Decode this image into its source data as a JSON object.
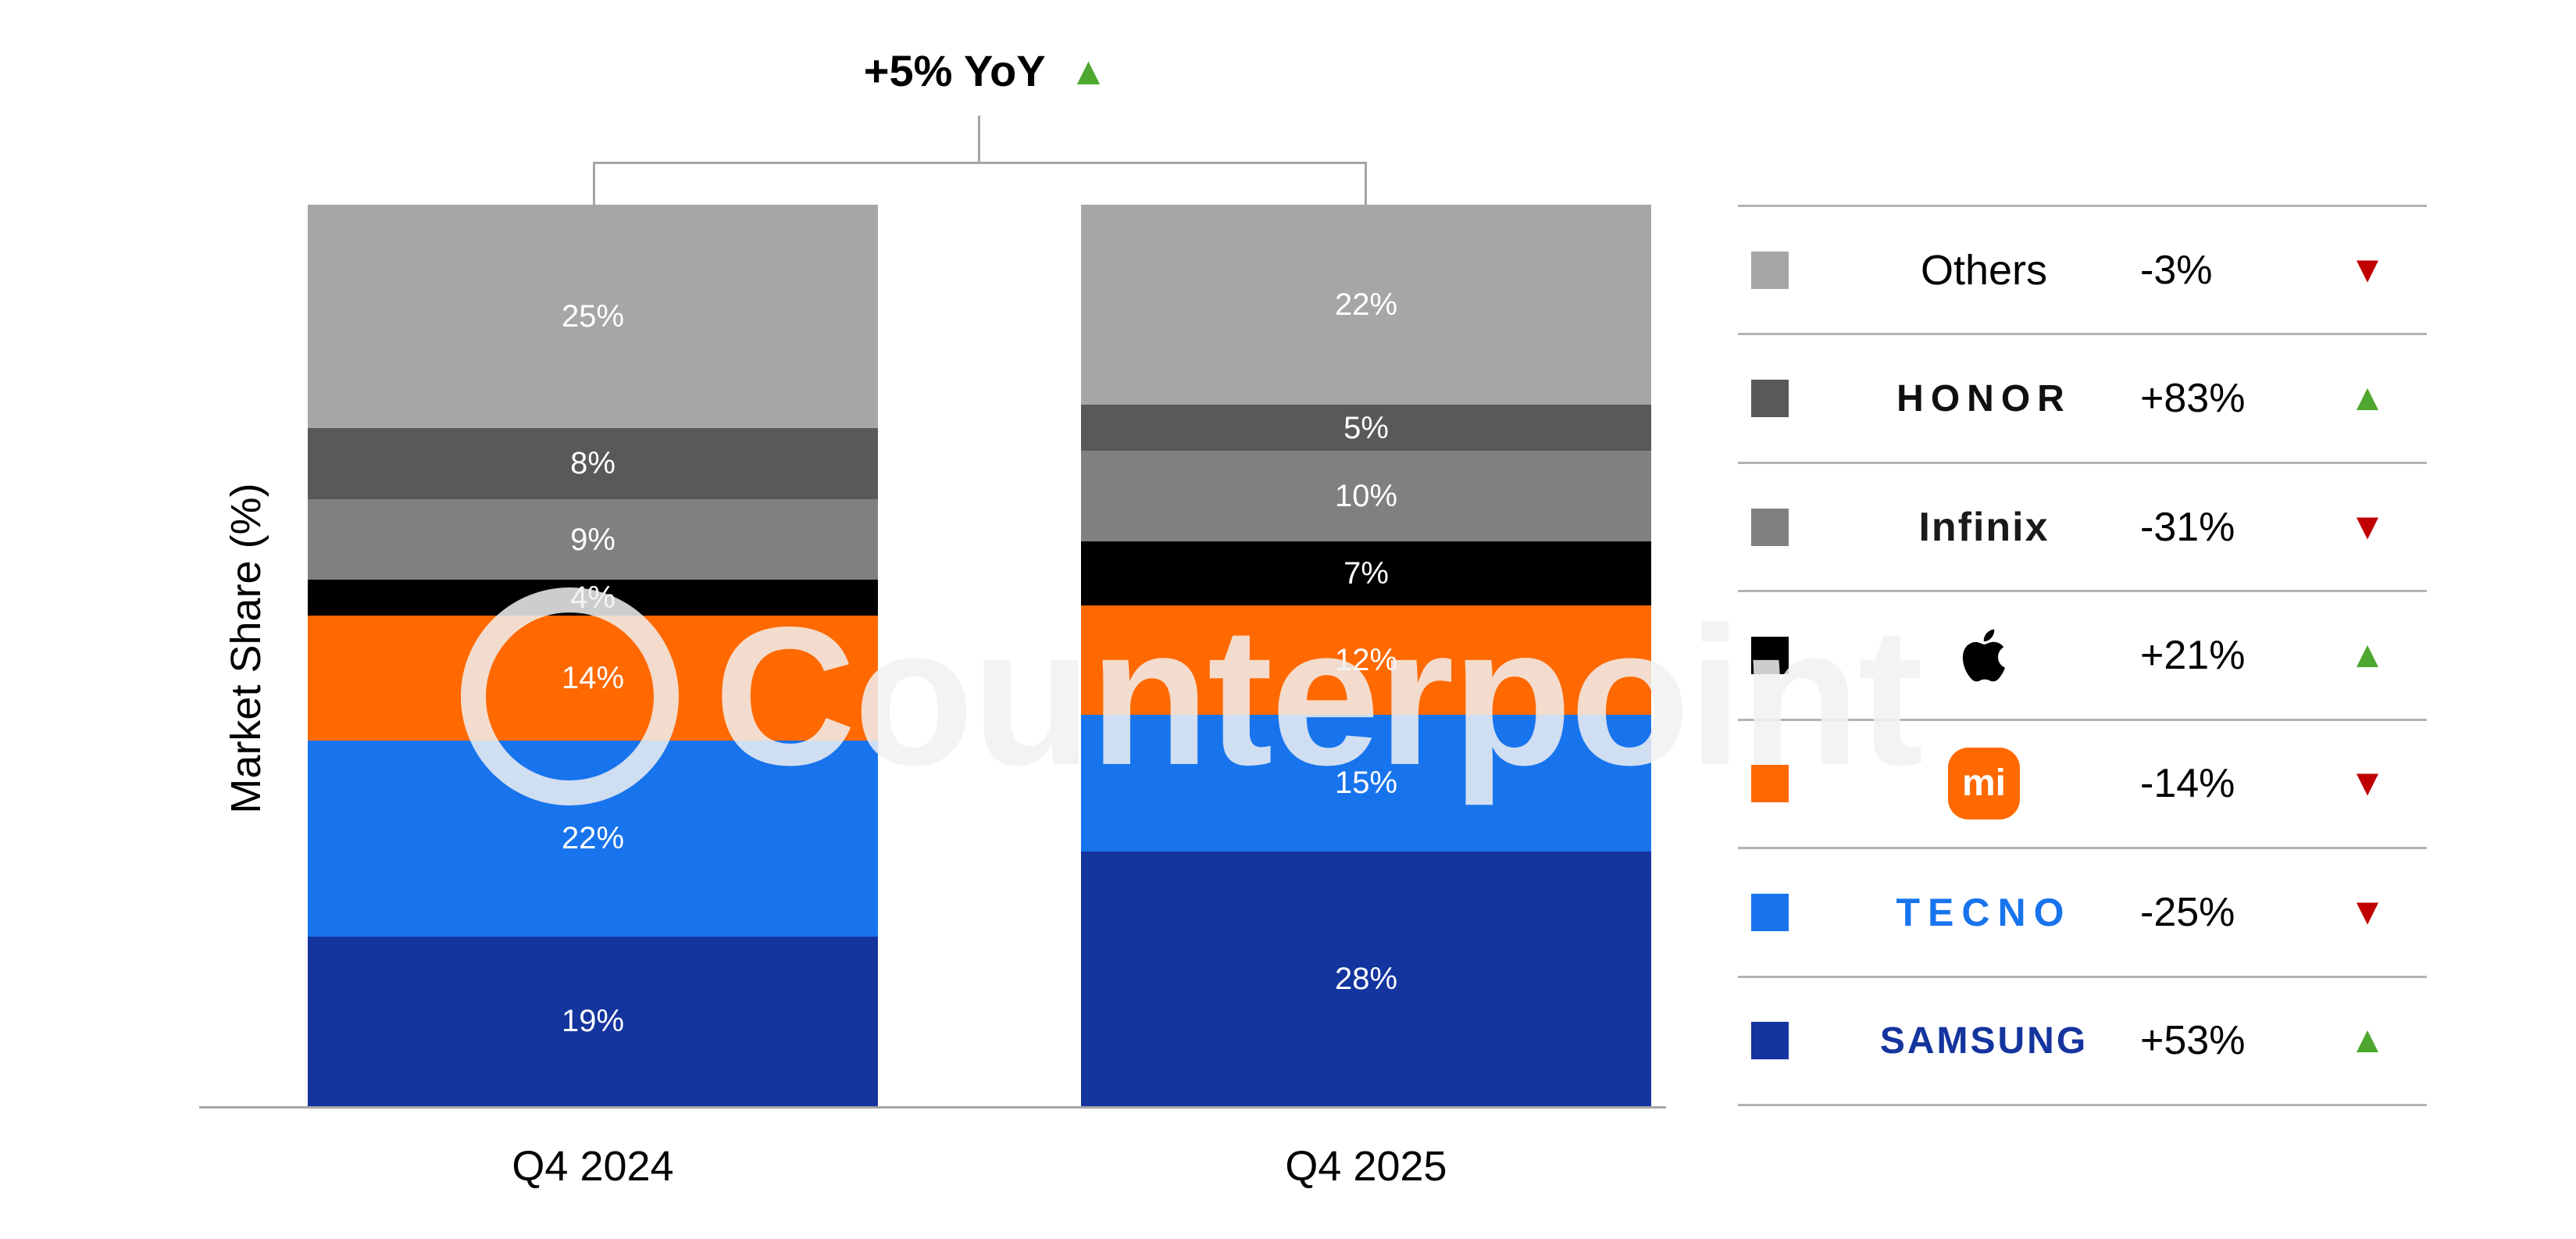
{
  "annotation": {
    "text": "+5% YoY",
    "trend": "up"
  },
  "watermark": {
    "text": "Counterpoint"
  },
  "icons": {
    "up": "▲",
    "down": "▼"
  },
  "colors": {
    "up": "#4ea72e",
    "down": "#c00000",
    "axis": "#a6a6a6"
  },
  "chart_data": {
    "type": "bar",
    "variant": "stacked-column",
    "title": "+5% YoY",
    "ylabel": "Market Share (%)",
    "unit": "%",
    "ylim": [
      0,
      100
    ],
    "categories": [
      "Q4 2024",
      "Q4 2025"
    ],
    "series": [
      {
        "name": "SAMSUNG",
        "color": "#14349e",
        "values": [
          19,
          28
        ]
      },
      {
        "name": "TECNO",
        "color": "#1874ed",
        "values": [
          22,
          15
        ]
      },
      {
        "name": "Xiaomi",
        "color": "#ff6900",
        "values": [
          14,
          12
        ]
      },
      {
        "name": "Apple",
        "color": "#000000",
        "values": [
          4,
          7
        ]
      },
      {
        "name": "Infinix",
        "color": "#808080",
        "values": [
          9,
          10
        ]
      },
      {
        "name": "HONOR",
        "color": "#595959",
        "values": [
          8,
          5
        ]
      },
      {
        "name": "Others",
        "color": "#a6a6a6",
        "values": [
          25,
          22
        ]
      }
    ]
  },
  "legend": {
    "rows": [
      {
        "id": "others",
        "label": "Others",
        "color": "#a6a6a6",
        "yoy": "-3%",
        "trend": "down",
        "render": "text"
      },
      {
        "id": "honor",
        "label": "HONOR",
        "color": "#595959",
        "yoy": "+83%",
        "trend": "up",
        "render": "text"
      },
      {
        "id": "infinix",
        "label": "Infinix",
        "color": "#808080",
        "yoy": "-31%",
        "trend": "down",
        "render": "text"
      },
      {
        "id": "apple",
        "label": "Apple",
        "color": "#000000",
        "yoy": "+21%",
        "trend": "up",
        "render": "apple-logo"
      },
      {
        "id": "xiaomi",
        "label": "Xiaomi",
        "color": "#ff6900",
        "yoy": "-14%",
        "trend": "down",
        "render": "mi-badge",
        "logo_text": "mi"
      },
      {
        "id": "tecno",
        "label": "TECNO",
        "color": "#1874ed",
        "yoy": "-25%",
        "trend": "down",
        "render": "text"
      },
      {
        "id": "samsung",
        "label": "SAMSUNG",
        "color": "#14349e",
        "yoy": "+53%",
        "trend": "up",
        "render": "text"
      }
    ]
  }
}
